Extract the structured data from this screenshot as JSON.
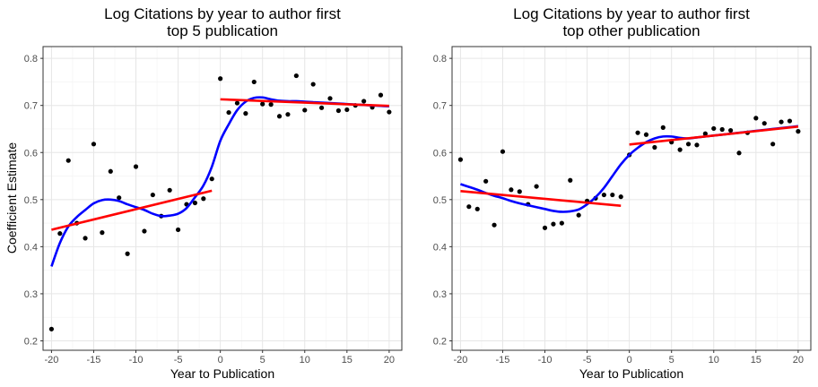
{
  "chart_data": [
    {
      "type": "scatter",
      "title_lines": [
        "Log Citations by year to author first",
        "top 5 publication"
      ],
      "xlabel": "Year to Publication",
      "ylabel": "Coefficient Estimate",
      "xlim": [
        -21,
        21.5
      ],
      "ylim": [
        0.18,
        0.825
      ],
      "xticks": [
        -20,
        -15,
        -10,
        -5,
        0,
        5,
        10,
        15,
        20
      ],
      "yticks": [
        0.2,
        0.3,
        0.4,
        0.5,
        0.6,
        0.7,
        0.8
      ],
      "grid": true,
      "points": {
        "x": [
          -20,
          -19,
          -18,
          -17,
          -16,
          -15,
          -14,
          -13,
          -12,
          -11,
          -10,
          -9,
          -8,
          -7,
          -6,
          -5,
          -4,
          -3,
          -2,
          -1,
          0,
          1,
          2,
          3,
          4,
          5,
          6,
          7,
          8,
          9,
          10,
          11,
          12,
          13,
          14,
          15,
          16,
          17,
          18,
          19,
          20
        ],
        "y": [
          0.225,
          0.428,
          0.583,
          0.45,
          0.418,
          0.618,
          0.43,
          0.56,
          0.504,
          0.385,
          0.57,
          0.433,
          0.51,
          0.465,
          0.52,
          0.436,
          0.49,
          0.493,
          0.502,
          0.544,
          0.757,
          0.685,
          0.705,
          0.683,
          0.75,
          0.703,
          0.702,
          0.677,
          0.681,
          0.763,
          0.69,
          0.745,
          0.695,
          0.715,
          0.689,
          0.691,
          0.7,
          0.709,
          0.696,
          0.722,
          0.686
        ]
      },
      "smooth_line": {
        "color": "#0000ff",
        "x": [
          -20,
          -19,
          -18,
          -17,
          -16,
          -15,
          -14,
          -13,
          -12,
          -11,
          -10,
          -9,
          -8,
          -7,
          -6,
          -5,
          -4,
          -3,
          -2,
          -1,
          0,
          1,
          2,
          3,
          4,
          5,
          6,
          7,
          8,
          9,
          10,
          11,
          12,
          13,
          14,
          15,
          16,
          17,
          18,
          19,
          20
        ],
        "y": [
          0.358,
          0.408,
          0.443,
          0.463,
          0.478,
          0.492,
          0.499,
          0.5,
          0.497,
          0.49,
          0.484,
          0.478,
          0.47,
          0.465,
          0.466,
          0.47,
          0.482,
          0.505,
          0.53,
          0.57,
          0.625,
          0.66,
          0.69,
          0.708,
          0.716,
          0.717,
          0.713,
          0.71,
          0.709,
          0.709,
          0.708,
          0.707,
          0.706,
          0.705,
          0.704,
          0.703,
          0.702,
          0.701,
          0.7,
          0.699,
          0.698
        ]
      },
      "fit_lines": [
        {
          "color": "#ff0000",
          "x": [
            -20,
            -1
          ],
          "y": [
            0.436,
            0.519
          ]
        },
        {
          "color": "#ff0000",
          "x": [
            0,
            20
          ],
          "y": [
            0.713,
            0.699
          ]
        }
      ]
    },
    {
      "type": "scatter",
      "title_lines": [
        "Log Citations by year to author first",
        "top other publication"
      ],
      "xlabel": "Year to Publication",
      "ylabel": "",
      "xlim": [
        -21,
        21.5
      ],
      "ylim": [
        0.18,
        0.825
      ],
      "xticks": [
        -20,
        -15,
        -10,
        -5,
        0,
        5,
        10,
        15,
        20
      ],
      "yticks": [
        0.2,
        0.3,
        0.4,
        0.5,
        0.6,
        0.7,
        0.8
      ],
      "grid": true,
      "points": {
        "x": [
          -20,
          -19,
          -18,
          -17,
          -16,
          -15,
          -14,
          -13,
          -12,
          -11,
          -10,
          -9,
          -8,
          -7,
          -6,
          -5,
          -4,
          -3,
          -2,
          -1,
          0,
          1,
          2,
          3,
          4,
          5,
          6,
          7,
          8,
          9,
          10,
          11,
          12,
          13,
          14,
          15,
          16,
          17,
          18,
          19,
          20
        ],
        "y": [
          0.585,
          0.485,
          0.48,
          0.539,
          0.446,
          0.602,
          0.521,
          0.517,
          0.49,
          0.528,
          0.44,
          0.448,
          0.45,
          0.541,
          0.467,
          0.497,
          0.503,
          0.51,
          0.51,
          0.506,
          0.595,
          0.642,
          0.638,
          0.611,
          0.653,
          0.622,
          0.606,
          0.618,
          0.616,
          0.64,
          0.651,
          0.649,
          0.647,
          0.599,
          0.642,
          0.673,
          0.662,
          0.618,
          0.665,
          0.667,
          0.645
        ]
      },
      "smooth_line": {
        "color": "#0000ff",
        "x": [
          -20,
          -19,
          -18,
          -17,
          -16,
          -15,
          -14,
          -13,
          -12,
          -11,
          -10,
          -9,
          -8,
          -7,
          -6,
          -5,
          -4,
          -3,
          -2,
          -1,
          0,
          1,
          2,
          3,
          4,
          5,
          6,
          7,
          8,
          9,
          10,
          11,
          12,
          13,
          14,
          15,
          16,
          17,
          18,
          19,
          20
        ],
        "y": [
          0.533,
          0.527,
          0.521,
          0.514,
          0.508,
          0.503,
          0.497,
          0.492,
          0.488,
          0.484,
          0.48,
          0.476,
          0.474,
          0.475,
          0.479,
          0.49,
          0.505,
          0.525,
          0.55,
          0.575,
          0.595,
          0.61,
          0.622,
          0.63,
          0.634,
          0.634,
          0.631,
          0.63,
          0.632,
          0.634,
          0.636,
          0.638,
          0.64,
          0.642,
          0.644,
          0.646,
          0.648,
          0.65,
          0.652,
          0.654,
          0.656
        ]
      },
      "fit_lines": [
        {
          "color": "#ff0000",
          "x": [
            -20,
            -1
          ],
          "y": [
            0.518,
            0.487
          ]
        },
        {
          "color": "#ff0000",
          "x": [
            0,
            20
          ],
          "y": [
            0.617,
            0.655
          ]
        }
      ]
    }
  ]
}
